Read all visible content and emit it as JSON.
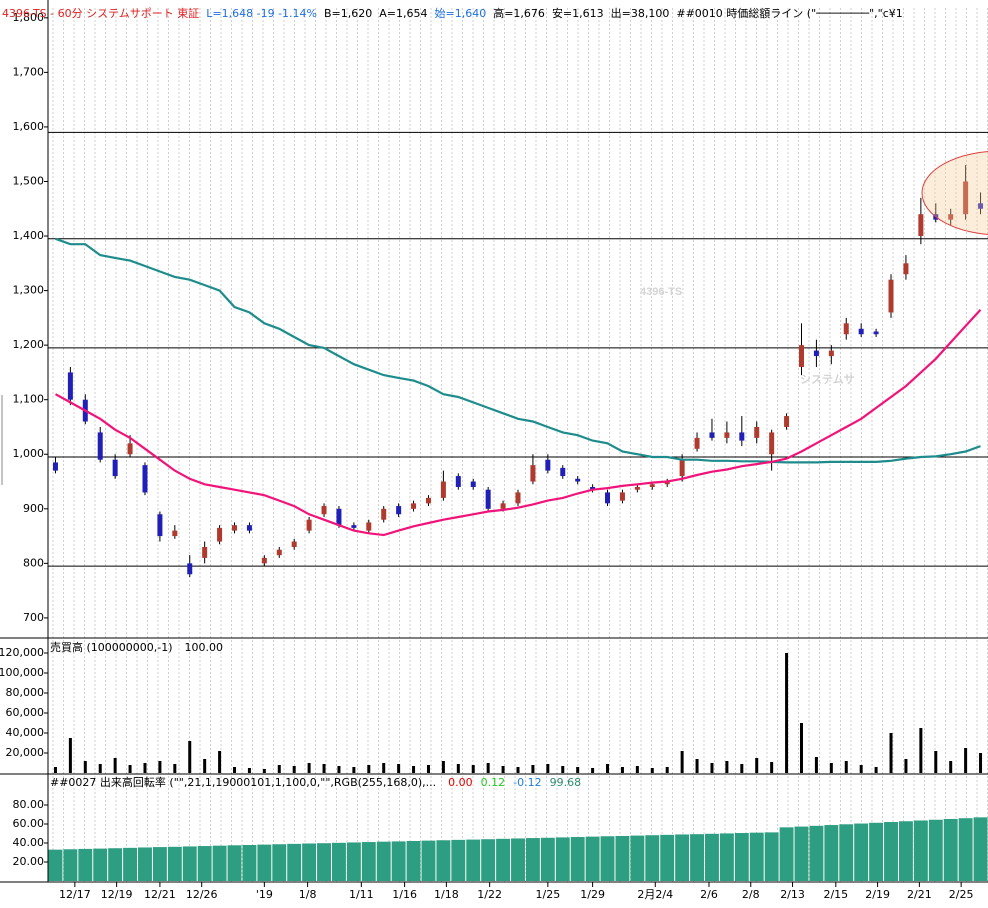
{
  "chart_data": [
    {
      "type": "candlestick",
      "header": [
        {
          "text": "4396-TS - 60分  システムサポート  東証",
          "color": "#e02020"
        },
        {
          "text": "L=1,648  -19  -1.14%",
          "color": "#1e6fe0"
        },
        {
          "text": "B=1,620",
          "color": "#000000"
        },
        {
          "text": "A=1,654",
          "color": "#000000"
        },
        {
          "text": "始=1,640",
          "color": "#1e6fe0"
        },
        {
          "text": "高=1,676",
          "color": "#000000"
        },
        {
          "text": "安=1,613",
          "color": "#000000"
        },
        {
          "text": "出=38,100",
          "color": "#000000"
        },
        {
          "text": "##0010 時価総額ライン (\"────────\",\"c¥1",
          "color": "#000000"
        }
      ],
      "watermark": [
        "4396-TS",
        "システムサ"
      ],
      "xlim": [
        -0.5,
        62.5
      ],
      "ylim": [
        665,
        1818
      ],
      "yticks": [
        {
          "value": 700,
          "label": "700"
        },
        {
          "value": 800,
          "label": "800"
        },
        {
          "value": 900,
          "label": "900"
        },
        {
          "value": 1000,
          "label": "1,000"
        },
        {
          "value": 1100,
          "label": "1,100"
        },
        {
          "value": 1200,
          "label": "1,200"
        },
        {
          "value": 1300,
          "label": "1,300"
        },
        {
          "value": 1400,
          "label": "1,400"
        },
        {
          "value": 1500,
          "label": "1,500"
        },
        {
          "value": 1600,
          "label": "1,600"
        },
        {
          "value": 1700,
          "label": "1,700"
        },
        {
          "value": 1800,
          "label": "1,800"
        }
      ],
      "hlines": [
        795,
        995,
        1195,
        1395,
        1590
      ],
      "up_color": "#b03a2e",
      "down_color": "#2020b8",
      "open": [
        985,
        1150,
        1100,
        1040,
        990,
        1000,
        980,
        890,
        850,
        800,
        810,
        840,
        860,
        870,
        800,
        815,
        830,
        860,
        890,
        900,
        870,
        860,
        880,
        905,
        900,
        910,
        920,
        960,
        950,
        935,
        900,
        910,
        950,
        990,
        975,
        955,
        940,
        930,
        915,
        935,
        940,
        945,
        960,
        1010,
        1040,
        1030,
        1040,
        1030,
        1000,
        1050,
        1160,
        1190,
        1180,
        1220,
        1230,
        1225,
        1260,
        1330,
        1400,
        1440,
        1430,
        1440,
        1460
      ],
      "high": [
        995,
        1160,
        1110,
        1050,
        1000,
        1035,
        985,
        895,
        870,
        815,
        840,
        870,
        875,
        875,
        815,
        830,
        845,
        885,
        910,
        905,
        875,
        880,
        905,
        910,
        915,
        925,
        970,
        965,
        955,
        940,
        915,
        935,
        1000,
        1000,
        980,
        960,
        945,
        935,
        935,
        945,
        950,
        955,
        1000,
        1040,
        1065,
        1060,
        1070,
        1060,
        1045,
        1075,
        1240,
        1210,
        1200,
        1250,
        1240,
        1230,
        1330,
        1365,
        1470,
        1460,
        1450,
        1530,
        1480
      ],
      "low": [
        965,
        1090,
        1055,
        985,
        955,
        995,
        925,
        840,
        845,
        775,
        800,
        835,
        855,
        855,
        795,
        810,
        825,
        855,
        885,
        865,
        860,
        855,
        875,
        885,
        895,
        905,
        915,
        935,
        935,
        895,
        895,
        905,
        945,
        965,
        955,
        945,
        930,
        905,
        910,
        930,
        935,
        940,
        950,
        1005,
        1025,
        1020,
        1015,
        1020,
        970,
        1045,
        1145,
        1160,
        1165,
        1210,
        1215,
        1215,
        1250,
        1320,
        1385,
        1425,
        1420,
        1430,
        1440
      ],
      "close": [
        970,
        1100,
        1060,
        990,
        960,
        1020,
        930,
        850,
        860,
        780,
        830,
        865,
        870,
        860,
        810,
        825,
        840,
        880,
        905,
        870,
        865,
        875,
        900,
        890,
        910,
        920,
        950,
        940,
        940,
        900,
        910,
        930,
        980,
        970,
        960,
        950,
        935,
        910,
        930,
        940,
        945,
        950,
        990,
        1030,
        1030,
        1040,
        1025,
        1050,
        1040,
        1070,
        1200,
        1180,
        1190,
        1240,
        1220,
        1220,
        1320,
        1350,
        1440,
        1430,
        1440,
        1500,
        1450
      ],
      "series": [
        {
          "color": "#1e8c8c",
          "values": [
            1395,
            1385,
            1385,
            1365,
            1360,
            1355,
            1345,
            1335,
            1325,
            1320,
            1310,
            1300,
            1270,
            1260,
            1240,
            1230,
            1215,
            1200,
            1195,
            1180,
            1165,
            1155,
            1145,
            1140,
            1135,
            1125,
            1110,
            1105,
            1095,
            1085,
            1075,
            1065,
            1060,
            1050,
            1040,
            1035,
            1025,
            1020,
            1005,
            1000,
            995,
            995,
            990,
            990,
            988,
            988,
            987,
            987,
            986,
            985,
            985,
            985,
            986,
            986,
            986,
            986,
            988,
            992,
            995,
            996,
            1000,
            1005,
            1015
          ]
        },
        {
          "color": "#f0147a",
          "values": [
            1110,
            1095,
            1080,
            1065,
            1045,
            1030,
            1010,
            990,
            970,
            955,
            945,
            940,
            935,
            930,
            925,
            915,
            905,
            890,
            880,
            870,
            860,
            855,
            852,
            860,
            868,
            874,
            880,
            885,
            890,
            895,
            898,
            902,
            908,
            915,
            920,
            928,
            935,
            938,
            942,
            945,
            948,
            950,
            955,
            962,
            968,
            972,
            978,
            982,
            986,
            992,
            1005,
            1020,
            1035,
            1050,
            1065,
            1085,
            1105,
            1125,
            1150,
            1175,
            1205,
            1235,
            1265
          ]
        }
      ]
    },
    {
      "type": "bar",
      "title": "売買高 (100000000,-1)",
      "readings": [
        {
          "text": "100.00",
          "color": "#000000"
        }
      ],
      "color": "#000000",
      "xlim": [
        -0.5,
        62.5
      ],
      "ylim": [
        0,
        133000
      ],
      "yticks": [
        {
          "value": 20000,
          "label": "20,000"
        },
        {
          "value": 40000,
          "label": "40,000"
        },
        {
          "value": 60000,
          "label": "60,000"
        },
        {
          "value": 80000,
          "label": "80,000"
        },
        {
          "value": 100000,
          "label": "100,000"
        },
        {
          "value": 120000,
          "label": "120,000"
        }
      ],
      "values": [
        6000,
        35000,
        12000,
        9000,
        15000,
        8000,
        10000,
        12000,
        9000,
        32000,
        14000,
        22000,
        6000,
        5000,
        4000,
        8000,
        7000,
        10000,
        9000,
        7000,
        6000,
        8000,
        10000,
        9000,
        7000,
        8000,
        12000,
        9000,
        8000,
        10000,
        7000,
        6000,
        8000,
        9000,
        7000,
        6000,
        5000,
        9000,
        6000,
        7000,
        5000,
        6000,
        22000,
        14000,
        10000,
        12000,
        9000,
        15000,
        11000,
        120000,
        50000,
        16000,
        10000,
        12000,
        8000,
        6000,
        40000,
        14000,
        45000,
        22000,
        12000,
        25000,
        20000
      ]
    },
    {
      "type": "bar",
      "title": "##0027 出来高回転率 (\"\",21,1,19000101,1,100,0,\"\",RGB(255,168,0),...",
      "readings": [
        {
          "text": "0.00",
          "color": "#e00000"
        },
        {
          "text": "0.12",
          "color": "#22cc22"
        },
        {
          "text": "-0.12",
          "color": "#1e7fe0"
        },
        {
          "text": "99.68",
          "color": "#2e8b6e"
        }
      ],
      "color": "#2e9e82",
      "xlim": [
        -0.5,
        62.5
      ],
      "ylim": [
        0,
        111.6
      ],
      "yticks": [
        {
          "value": 20,
          "label": "20.00"
        },
        {
          "value": 40,
          "label": "40.00"
        },
        {
          "value": 60,
          "label": "60.00"
        },
        {
          "value": 80,
          "label": "80.00"
        }
      ],
      "values": [
        33.0,
        33.4,
        33.8,
        34.1,
        34.5,
        34.9,
        35.3,
        35.7,
        36.0,
        36.4,
        36.8,
        37.2,
        37.6,
        37.9,
        38.3,
        38.7,
        39.1,
        39.5,
        39.8,
        40.2,
        40.6,
        41.0,
        41.4,
        41.7,
        42.1,
        42.5,
        42.9,
        43.3,
        43.6,
        44.0,
        44.4,
        44.8,
        45.2,
        45.5,
        45.9,
        46.3,
        46.7,
        47.1,
        47.4,
        47.8,
        48.2,
        48.6,
        49.0,
        49.3,
        49.7,
        50.1,
        50.5,
        50.9,
        51.2,
        56.5,
        57.3,
        58.1,
        58.9,
        59.7,
        60.5,
        61.3,
        62.1,
        62.9,
        63.7,
        64.5,
        65.3,
        66.1,
        67.0
      ],
      "xticks": [
        {
          "value": 1.3,
          "label": "12/17"
        },
        {
          "value": 4.1,
          "label": "12/19"
        },
        {
          "value": 7.0,
          "label": "12/21"
        },
        {
          "value": 9.8,
          "label": "12/26"
        },
        {
          "value": 14.0,
          "label": "'19"
        },
        {
          "value": 16.9,
          "label": "1/8"
        },
        {
          "value": 20.5,
          "label": "1/11"
        },
        {
          "value": 23.4,
          "label": "1/16"
        },
        {
          "value": 26.2,
          "label": "1/18"
        },
        {
          "value": 29.1,
          "label": "1/22"
        },
        {
          "value": 33.0,
          "label": "1/25"
        },
        {
          "value": 36.0,
          "label": "1/29"
        },
        {
          "value": 40.2,
          "label": "2月2/4"
        },
        {
          "value": 43.8,
          "label": "2/6"
        },
        {
          "value": 46.6,
          "label": "2/8"
        },
        {
          "value": 49.4,
          "label": "2/13"
        },
        {
          "value": 52.3,
          "label": "2/15"
        },
        {
          "value": 55.1,
          "label": "2/19"
        },
        {
          "value": 57.9,
          "label": "2/21"
        },
        {
          "value": 60.7,
          "label": "2/25"
        }
      ]
    }
  ]
}
